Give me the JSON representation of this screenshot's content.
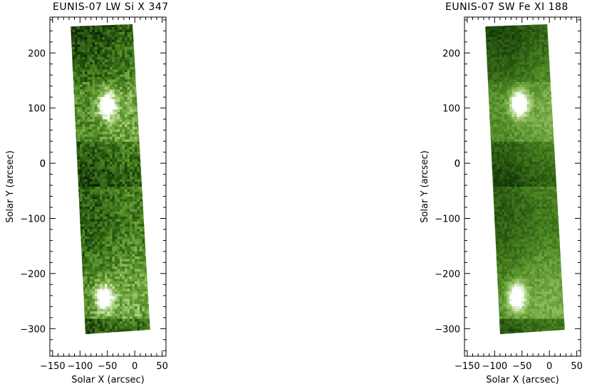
{
  "panels": [
    {
      "title": "EUNIS-07 LW Si X 347",
      "xlabel": "Solar X (arcsec)",
      "ylabel": "Solar Y (arcsec)"
    },
    {
      "title": "EUNIS-07 SW Fe XI 188",
      "xlabel": "Solar X (arcsec)",
      "ylabel": "Solar Y (arcsec)"
    }
  ],
  "chart_data": [
    {
      "type": "heatmap",
      "title": "EUNIS-07 LW Si X 347",
      "xlabel": "Solar X (arcsec)",
      "ylabel": "Solar Y (arcsec)",
      "xlim": [
        -155,
        57
      ],
      "ylim": [
        -350,
        265
      ],
      "xticks": [
        -150,
        -100,
        -50,
        0,
        50
      ],
      "yticks": [
        -300,
        -200,
        -100,
        0,
        100,
        200
      ],
      "colormap": [
        "#000000",
        "#1f4a0c",
        "#4f8a24",
        "#9cc86a",
        "#ffffff"
      ],
      "slit_corners": [
        [
          -117,
          248
        ],
        [
          -4,
          252
        ],
        [
          28,
          -302
        ],
        [
          -90,
          -310
        ]
      ],
      "bright_spots": [
        {
          "x": -52,
          "y": 108,
          "intensity": 1.0
        },
        {
          "x": -58,
          "y": -242,
          "intensity": 1.0
        }
      ]
    },
    {
      "type": "heatmap",
      "title": "EUNIS-07 SW Fe XI 188",
      "xlabel": "Solar X (arcsec)",
      "ylabel": "Solar Y (arcsec)",
      "xlim": [
        -155,
        57
      ],
      "ylim": [
        -350,
        265
      ],
      "xticks": [
        -150,
        -100,
        -50,
        0,
        50
      ],
      "yticks": [
        -300,
        -200,
        -100,
        0,
        100,
        200
      ],
      "colormap": [
        "#000000",
        "#1f4a0c",
        "#4f8a24",
        "#9cc86a",
        "#ffffff"
      ],
      "slit_corners": [
        [
          -117,
          248
        ],
        [
          -4,
          252
        ],
        [
          28,
          -302
        ],
        [
          -90,
          -310
        ]
      ],
      "bright_spots": [
        {
          "x": -58,
          "y": 110,
          "intensity": 1.0
        },
        {
          "x": -62,
          "y": -240,
          "intensity": 1.0
        }
      ]
    }
  ]
}
